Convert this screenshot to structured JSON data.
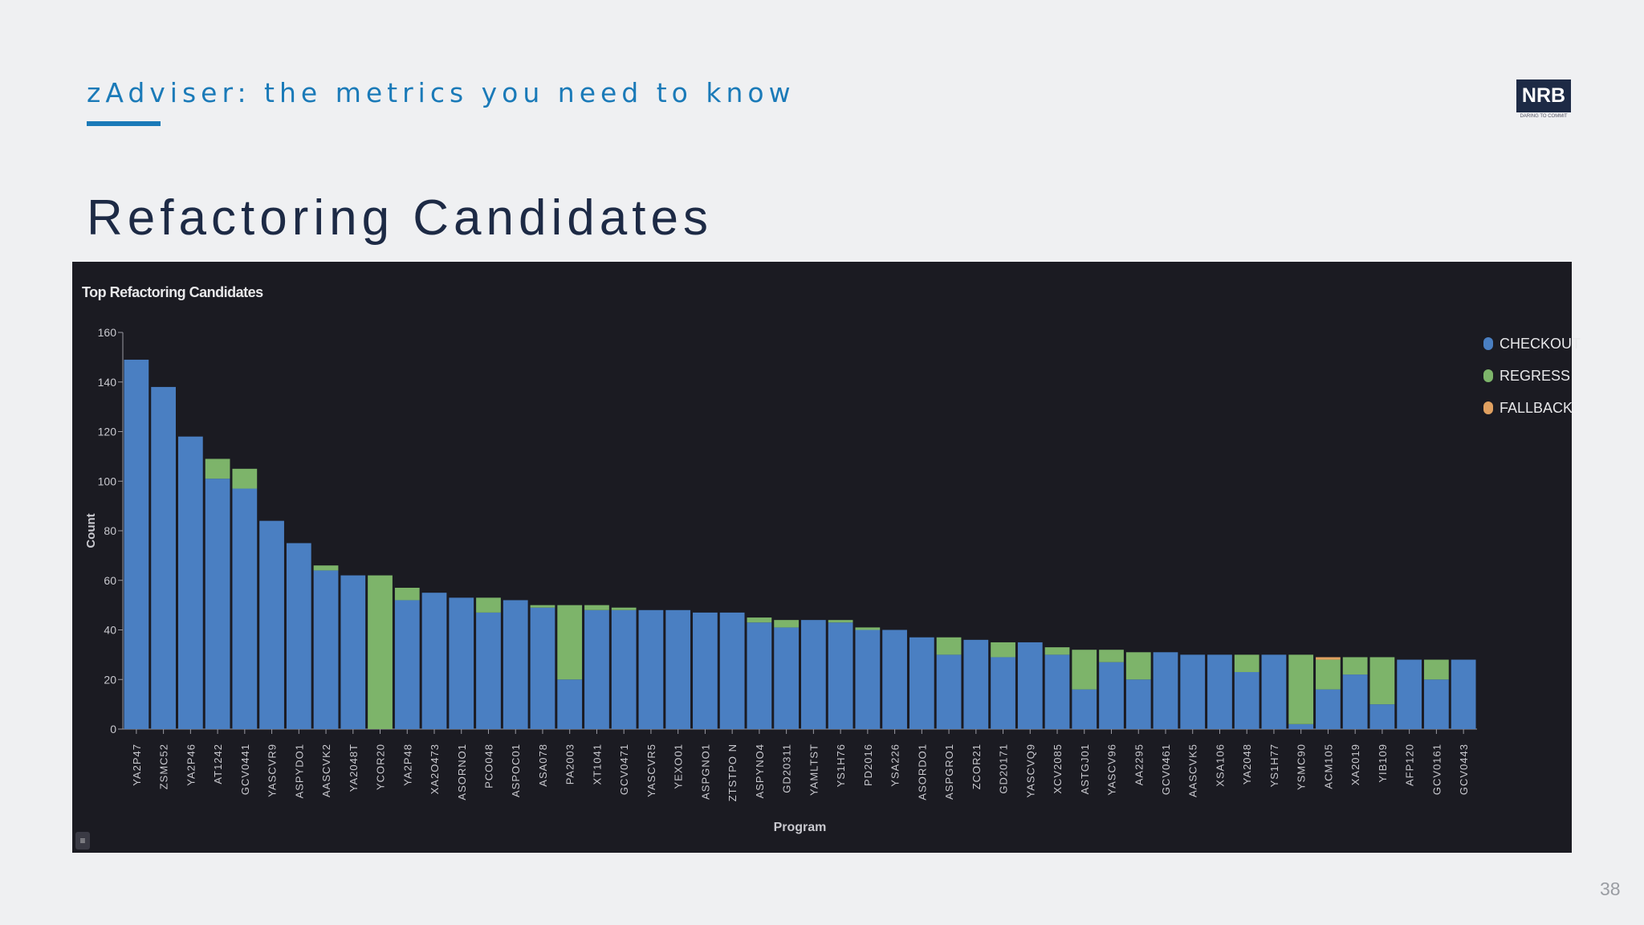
{
  "header": {
    "kicker": "zAdviser: the metrics you need to know",
    "title": "Refactoring Candidates",
    "page_number": "38"
  },
  "logo": {
    "text": "NRB",
    "tagline": "DARING TO COMMIT"
  },
  "colors": {
    "accent": "#1a7ab8",
    "title": "#1d2a45",
    "checkout": "#4a7fc2",
    "regress": "#7db46a",
    "fallback": "#e0a060",
    "panel": "#1b1b22"
  },
  "chart_data": {
    "type": "bar",
    "stacked": true,
    "title": "Top Refactoring Candidates",
    "xlabel": "Program",
    "ylabel": "Count",
    "ylim": [
      0,
      160
    ],
    "yticks": [
      0,
      20,
      40,
      60,
      80,
      100,
      120,
      140,
      160
    ],
    "legend_position": "top-right",
    "categories": [
      "YA2P47",
      "ZSMC52",
      "YA2P46",
      "AT1242",
      "GCV0441",
      "YASCVR9",
      "ASPYDO1",
      "AASCVK2",
      "YA2048T",
      "YCOR20",
      "YA2P48",
      "XA2O473",
      "ASORNO1",
      "PCO048",
      "ASPOC01",
      "ASA078",
      "PA2003",
      "XT1041",
      "GCV0471",
      "YASCVR5",
      "YEXO01",
      "ASPGNO1",
      "ZTSTPO N",
      "ASPYNO4",
      "GD20311",
      "YAMLTST",
      "YS1H76",
      "PD2016",
      "YSA226",
      "ASORDO1",
      "ASPGRO1",
      "ZCOR21",
      "GD20171",
      "YASCVQ9",
      "XCV2085",
      "ASTGJ01",
      "YASCV96",
      "AA2295",
      "GCV0461",
      "AASCVK5",
      "XSA106",
      "YA2048",
      "YS1H77",
      "YSMC90",
      "ACM105",
      "XA2019",
      "YIB109",
      "AFP120",
      "GCV0161",
      "GCV0443"
    ],
    "series": [
      {
        "name": "CHECKOUT",
        "values": [
          149,
          138,
          118,
          101,
          97,
          84,
          75,
          64,
          62,
          0,
          52,
          55,
          53,
          47,
          52,
          49,
          20,
          48,
          48,
          48,
          48,
          47,
          47,
          43,
          41,
          44,
          43,
          40,
          40,
          37,
          30,
          36,
          29,
          35,
          30,
          16,
          27,
          20,
          31,
          30,
          30,
          23,
          30,
          2,
          16,
          22,
          10,
          28,
          20,
          28
        ]
      },
      {
        "name": "REGRESS",
        "values": [
          0,
          0,
          0,
          8,
          8,
          0,
          0,
          2,
          0,
          62,
          5,
          0,
          0,
          6,
          0,
          1,
          30,
          2,
          1,
          0,
          0,
          0,
          0,
          2,
          3,
          0,
          1,
          1,
          0,
          0,
          7,
          0,
          6,
          0,
          3,
          16,
          5,
          11,
          0,
          0,
          0,
          7,
          0,
          28,
          12,
          7,
          19,
          0,
          8,
          0
        ]
      },
      {
        "name": "FALLBACK",
        "values": [
          0,
          0,
          0,
          0,
          0,
          0,
          0,
          0,
          0,
          0,
          0,
          0,
          0,
          0,
          0,
          0,
          0,
          0,
          0,
          0,
          0,
          0,
          0,
          0,
          0,
          0,
          0,
          0,
          0,
          0,
          0,
          0,
          0,
          0,
          0,
          0,
          0,
          0,
          0,
          0,
          0,
          0,
          0,
          0,
          1,
          0,
          0,
          0,
          0,
          0
        ]
      }
    ]
  }
}
